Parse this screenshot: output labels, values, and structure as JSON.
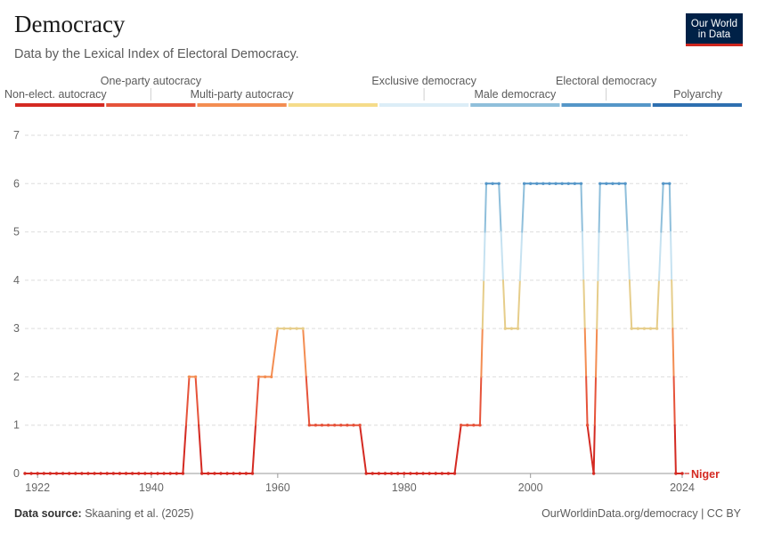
{
  "header": {
    "title": "Democracy",
    "subtitle": "Data by the Lexical Index of Electoral Democracy.",
    "logo_line1": "Our World",
    "logo_line2": "in Data"
  },
  "footer": {
    "source_label": "Data source:",
    "source_text": "Skaaning et al. (2025)",
    "url": "OurWorldinData.org/democracy | CC BY"
  },
  "legend": [
    {
      "label": "Non-elect. autocracy",
      "color": "#d42a22",
      "row": "lower"
    },
    {
      "label": "One-party autocracy",
      "color": "#e6533a",
      "row": "upper"
    },
    {
      "label": "Multi-party autocracy",
      "color": "#f38d52",
      "row": "lower"
    },
    {
      "label": "",
      "color": "#f5dc8a",
      "row": "none"
    },
    {
      "label": "Exclusive democracy",
      "color": "#dcedf7",
      "row": "upper"
    },
    {
      "label": "Male democracy",
      "color": "#8fbfdb",
      "row": "lower"
    },
    {
      "label": "Electoral democracy",
      "color": "#5596c8",
      "row": "upper"
    },
    {
      "label": "Polyarchy",
      "color": "#2e6fb0",
      "row": "lower"
    }
  ],
  "chart_data": {
    "type": "line",
    "title": "Democracy",
    "series": [
      {
        "name": "Niger",
        "x": [
          1920,
          1921,
          1922,
          1923,
          1924,
          1925,
          1926,
          1927,
          1928,
          1929,
          1930,
          1931,
          1932,
          1933,
          1934,
          1935,
          1936,
          1937,
          1938,
          1939,
          1940,
          1941,
          1942,
          1943,
          1944,
          1945,
          1946,
          1947,
          1948,
          1949,
          1950,
          1951,
          1952,
          1953,
          1954,
          1955,
          1956,
          1957,
          1958,
          1959,
          1960,
          1961,
          1962,
          1963,
          1964,
          1965,
          1966,
          1967,
          1968,
          1969,
          1970,
          1971,
          1972,
          1973,
          1974,
          1975,
          1976,
          1977,
          1978,
          1979,
          1980,
          1981,
          1982,
          1983,
          1984,
          1985,
          1986,
          1987,
          1988,
          1989,
          1990,
          1991,
          1992,
          1993,
          1994,
          1995,
          1996,
          1997,
          1998,
          1999,
          2000,
          2001,
          2002,
          2003,
          2004,
          2005,
          2006,
          2007,
          2008,
          2009,
          2010,
          2011,
          2012,
          2013,
          2014,
          2015,
          2016,
          2017,
          2018,
          2019,
          2020,
          2021,
          2022,
          2023,
          2024
        ],
        "values": [
          0,
          0,
          0,
          0,
          0,
          0,
          0,
          0,
          0,
          0,
          0,
          0,
          0,
          0,
          0,
          0,
          0,
          0,
          0,
          0,
          0,
          0,
          0,
          0,
          0,
          0,
          2,
          2,
          0,
          0,
          0,
          0,
          0,
          0,
          0,
          0,
          0,
          2,
          2,
          2,
          3,
          3,
          3,
          3,
          3,
          1,
          1,
          1,
          1,
          1,
          1,
          1,
          1,
          1,
          0,
          0,
          0,
          0,
          0,
          0,
          0,
          0,
          0,
          0,
          0,
          0,
          0,
          0,
          0,
          1,
          1,
          1,
          1,
          6,
          6,
          6,
          3,
          3,
          3,
          6,
          6,
          6,
          6,
          6,
          6,
          6,
          6,
          6,
          6,
          1,
          0,
          6,
          6,
          6,
          6,
          6,
          3,
          3,
          3,
          3,
          3,
          6,
          6,
          0,
          0
        ]
      }
    ],
    "end_label": "Niger",
    "xlim": [
      1920,
      2024
    ],
    "ylim": [
      0,
      7
    ],
    "x_ticks": [
      1922,
      1940,
      1960,
      1980,
      2000,
      2024
    ],
    "y_ticks": [
      0,
      1,
      2,
      3,
      4,
      5,
      6,
      7
    ],
    "grid": "horizontal dashed",
    "legend_position": "top",
    "level_colors": [
      "#d42a22",
      "#e6533a",
      "#f38d52",
      "#e6cd8a",
      "#c6e2f1",
      "#8fbfdb",
      "#5596c8",
      "#2e6fb0"
    ],
    "label_color": "#d42a22"
  }
}
